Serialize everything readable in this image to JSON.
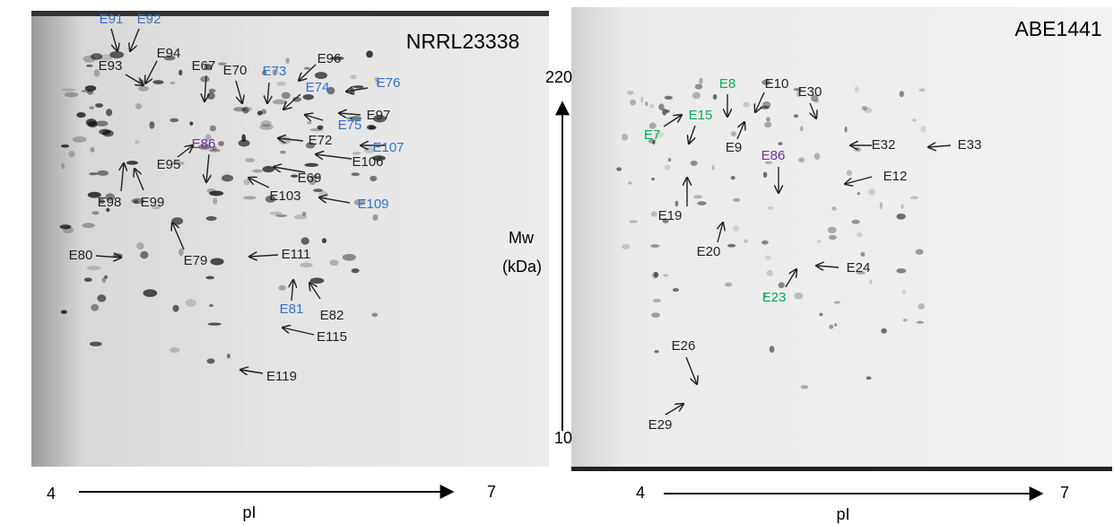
{
  "panels": [
    {
      "title": "NRRL23338",
      "x_axis": {
        "min": 4,
        "max": 7,
        "label": "pI"
      },
      "spots": [
        {
          "label": "E91",
          "color": "#2e75c5"
        },
        {
          "label": "E92",
          "color": "#2e75c5"
        },
        {
          "label": "E93",
          "color": "#222222"
        },
        {
          "label": "E94",
          "color": "#222222"
        },
        {
          "label": "E67",
          "color": "#222222"
        },
        {
          "label": "E70",
          "color": "#222222"
        },
        {
          "label": "E73",
          "color": "#2e75c5"
        },
        {
          "label": "E74",
          "color": "#2e75c5"
        },
        {
          "label": "E96",
          "color": "#222222"
        },
        {
          "label": "E76",
          "color": "#2e75c5"
        },
        {
          "label": "E75",
          "color": "#2e75c5"
        },
        {
          "label": "E97",
          "color": "#222222"
        },
        {
          "label": "E72",
          "color": "#222222"
        },
        {
          "label": "E107",
          "color": "#2e75c5"
        },
        {
          "label": "E106",
          "color": "#222222"
        },
        {
          "label": "E69",
          "color": "#222222"
        },
        {
          "label": "E103",
          "color": "#222222"
        },
        {
          "label": "E109",
          "color": "#2e75c5"
        },
        {
          "label": "E86",
          "color": "#7030a0"
        },
        {
          "label": "E95",
          "color": "#222222"
        },
        {
          "label": "E98",
          "color": "#222222"
        },
        {
          "label": "E99",
          "color": "#222222"
        },
        {
          "label": "E80",
          "color": "#222222"
        },
        {
          "label": "E79",
          "color": "#222222"
        },
        {
          "label": "E111",
          "color": "#222222"
        },
        {
          "label": "E81",
          "color": "#2e75c5"
        },
        {
          "label": "E82",
          "color": "#222222"
        },
        {
          "label": "E115",
          "color": "#222222"
        },
        {
          "label": "E119",
          "color": "#222222"
        }
      ]
    },
    {
      "title": "ABE1441",
      "x_axis": {
        "min": 4,
        "max": 7,
        "label": "pI"
      },
      "spots": [
        {
          "label": "E8",
          "color": "#00b050"
        },
        {
          "label": "E10",
          "color": "#222222"
        },
        {
          "label": "E30",
          "color": "#222222"
        },
        {
          "label": "E15",
          "color": "#00b050"
        },
        {
          "label": "E7",
          "color": "#00b050"
        },
        {
          "label": "E9",
          "color": "#222222"
        },
        {
          "label": "E86",
          "color": "#7030a0"
        },
        {
          "label": "E32",
          "color": "#222222"
        },
        {
          "label": "E33",
          "color": "#222222"
        },
        {
          "label": "E12",
          "color": "#222222"
        },
        {
          "label": "E19",
          "color": "#222222"
        },
        {
          "label": "E20",
          "color": "#222222"
        },
        {
          "label": "E24",
          "color": "#222222"
        },
        {
          "label": "E23",
          "color": "#00b050"
        },
        {
          "label": "E26",
          "color": "#222222"
        },
        {
          "label": "E29",
          "color": "#222222"
        }
      ]
    }
  ],
  "mw_axis": {
    "max": 220,
    "min": 10,
    "label_line1": "Mw",
    "label_line2": "(kDa)"
  }
}
